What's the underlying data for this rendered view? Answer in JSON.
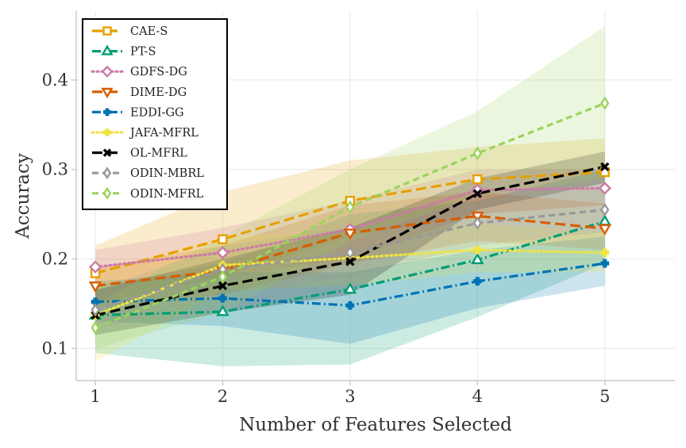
{
  "chart_data": {
    "type": "line",
    "title": "",
    "xlabel": "Number of Features Selected",
    "ylabel": "Accuracy",
    "xlim": [
      0.85,
      5.55
    ],
    "ylim": [
      0.064,
      0.477
    ],
    "x": [
      1,
      2,
      3,
      4,
      5
    ],
    "x_tick_labels": [
      "1",
      "2",
      "3",
      "4",
      "5"
    ],
    "y_ticks": [
      0.1,
      0.2,
      0.3,
      0.4
    ],
    "y_tick_labels": [
      "0.1",
      "0.2",
      "0.3",
      "0.4"
    ],
    "grid": true,
    "legend_position": "top-left",
    "series": [
      {
        "name": "CAE-S",
        "color": "#e69f00",
        "marker": "square",
        "dash": "long-dash",
        "values": [
          0.184,
          0.222,
          0.265,
          0.289,
          0.297
        ],
        "lower": [
          0.15,
          0.18,
          0.225,
          0.25,
          0.26
        ],
        "upper": [
          0.215,
          0.275,
          0.31,
          0.325,
          0.335
        ]
      },
      {
        "name": "PT-S",
        "color": "#009e73",
        "marker": "triangle-up",
        "dash": "dash-dot",
        "values": [
          0.137,
          0.141,
          0.166,
          0.199,
          0.242
        ],
        "lower": [
          0.095,
          0.08,
          0.082,
          0.135,
          0.195
        ],
        "upper": [
          0.17,
          0.195,
          0.25,
          0.265,
          0.3
        ]
      },
      {
        "name": "GDFS-DG",
        "color": "#cc79a7",
        "marker": "diamond",
        "dash": "dotted",
        "values": [
          0.191,
          0.207,
          0.233,
          0.277,
          0.279
        ],
        "lower": [
          0.17,
          0.18,
          0.2,
          0.25,
          0.26
        ],
        "upper": [
          0.21,
          0.235,
          0.265,
          0.3,
          0.3
        ]
      },
      {
        "name": "DIME-DG",
        "color": "#d55e00",
        "marker": "triangle-down",
        "dash": "long-dash",
        "values": [
          0.17,
          0.187,
          0.229,
          0.248,
          0.234
        ],
        "lower": [
          0.145,
          0.16,
          0.195,
          0.22,
          0.21
        ],
        "upper": [
          0.19,
          0.215,
          0.26,
          0.275,
          0.262
        ]
      },
      {
        "name": "EDDI-GG",
        "color": "#0072b2",
        "marker": "plus",
        "dash": "dash-dot",
        "values": [
          0.152,
          0.156,
          0.148,
          0.175,
          0.195
        ],
        "lower": [
          0.13,
          0.125,
          0.105,
          0.145,
          0.17
        ],
        "upper": [
          0.175,
          0.185,
          0.185,
          0.21,
          0.225
        ]
      },
      {
        "name": "JAFA-MFRL",
        "color": "#f0e442",
        "marker": "plus",
        "dash": "dotted",
        "values": [
          0.137,
          0.193,
          0.201,
          0.21,
          0.207
        ],
        "lower": [
          0.085,
          0.165,
          0.17,
          0.185,
          0.185
        ],
        "upper": [
          0.185,
          0.225,
          0.23,
          0.24,
          0.23
        ]
      },
      {
        "name": "OL-MFRL",
        "color": "#000000",
        "marker": "x",
        "dash": "long-dash",
        "values": [
          0.137,
          0.17,
          0.197,
          0.273,
          0.303
        ],
        "lower": [
          0.115,
          0.14,
          0.16,
          0.255,
          0.285
        ],
        "upper": [
          0.165,
          0.2,
          0.235,
          0.29,
          0.32
        ]
      },
      {
        "name": "ODIN-MBRL",
        "color": "#999999",
        "marker": "thin-diamond",
        "dash": "dashed",
        "values": [
          0.143,
          0.188,
          0.207,
          0.24,
          0.255
        ],
        "lower": [
          0.12,
          0.16,
          0.18,
          0.215,
          0.23
        ],
        "upper": [
          0.165,
          0.215,
          0.235,
          0.265,
          0.28
        ]
      },
      {
        "name": "ODIN-MFRL",
        "color": "#9bd35d",
        "marker": "thin-diamond",
        "dash": "dashed",
        "values": [
          0.123,
          0.18,
          0.258,
          0.318,
          0.374
        ],
        "lower": [
          0.1,
          0.14,
          0.22,
          0.27,
          0.29
        ],
        "upper": [
          0.15,
          0.225,
          0.3,
          0.365,
          0.46
        ]
      }
    ]
  }
}
